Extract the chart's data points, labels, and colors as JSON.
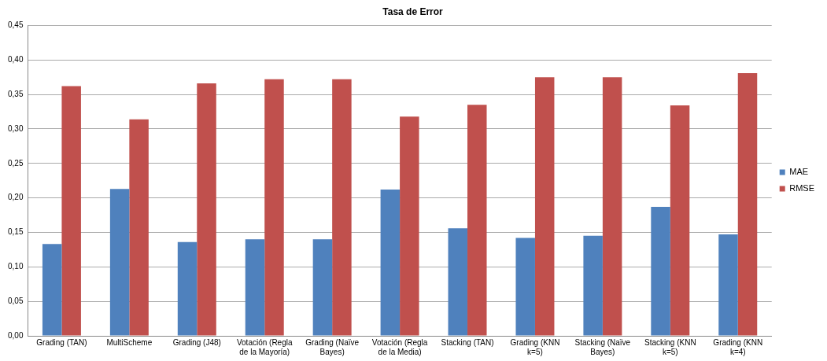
{
  "chart_data": {
    "type": "bar",
    "title": "Tasa de Error",
    "categories": [
      "Grading (TAN)",
      "MultiScheme",
      "Grading (J48)",
      "Votación (Regla de la Mayoría)",
      "Grading (Naïve Bayes)",
      "Votación (Regla de la Media)",
      "Stacking (TAN)",
      "Grading (KNN k=5)",
      "Stacking (Naïve Bayes)",
      "Stacking (KNN k=5)",
      "Grading (KNN k=4)"
    ],
    "series": [
      {
        "name": "MAE",
        "color": "#4f81bd",
        "values": [
          0.133,
          0.213,
          0.136,
          0.14,
          0.14,
          0.212,
          0.156,
          0.142,
          0.145,
          0.187,
          0.147
        ]
      },
      {
        "name": "RMSE",
        "color": "#c0504d",
        "values": [
          0.362,
          0.314,
          0.366,
          0.372,
          0.372,
          0.318,
          0.335,
          0.375,
          0.375,
          0.334,
          0.381
        ]
      }
    ],
    "ylim": [
      0,
      0.45
    ],
    "yticks": [
      {
        "value": 0,
        "label": "0,00"
      },
      {
        "value": 0.05,
        "label": "0,05"
      },
      {
        "value": 0.1,
        "label": "0,10"
      },
      {
        "value": 0.15,
        "label": "0,15"
      },
      {
        "value": 0.2,
        "label": "0,20"
      },
      {
        "value": 0.25,
        "label": "0,25"
      },
      {
        "value": 0.3,
        "label": "0,30"
      },
      {
        "value": 0.35,
        "label": "0,35"
      },
      {
        "value": 0.4,
        "label": "0,40"
      },
      {
        "value": 0.45,
        "label": "0,45"
      }
    ],
    "grid": "y",
    "legend": "right"
  }
}
